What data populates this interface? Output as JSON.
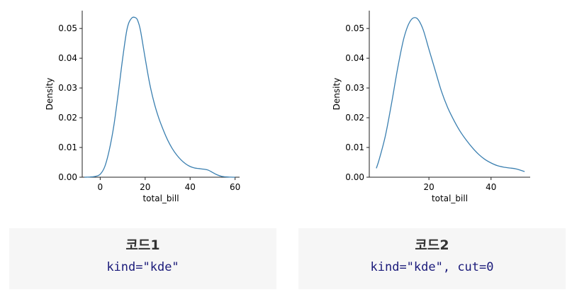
{
  "chart_data": [
    {
      "type": "line",
      "xlabel": "total_bill",
      "ylabel": "Density",
      "xlim": [
        -8,
        62
      ],
      "ylim": [
        0,
        0.056
      ],
      "xticks": [
        0,
        20,
        40,
        60
      ],
      "yticks": [
        0.0,
        0.01,
        0.02,
        0.03,
        0.04,
        0.05
      ],
      "xtick_labels": [
        "0",
        "20",
        "40",
        "60"
      ],
      "ytick_labels": [
        "0.00",
        "0.01",
        "0.02",
        "0.03",
        "0.04",
        "0.05"
      ],
      "color": "#3a7fb0",
      "series": [
        {
          "x": [
            -7,
            -4,
            -2,
            0,
            2,
            4,
            6,
            8,
            10,
            12,
            14,
            16,
            17,
            18,
            20,
            22,
            24,
            26,
            28,
            30,
            32,
            34,
            36,
            38,
            40,
            42,
            44,
            46,
            48,
            50,
            52,
            54,
            56,
            58,
            60
          ],
          "y": [
            0.0,
            0.0001,
            0.0003,
            0.001,
            0.0035,
            0.009,
            0.017,
            0.028,
            0.04,
            0.05,
            0.0535,
            0.0535,
            0.052,
            0.049,
            0.04,
            0.0315,
            0.025,
            0.02,
            0.016,
            0.0125,
            0.0097,
            0.0075,
            0.0058,
            0.0045,
            0.0036,
            0.0031,
            0.0029,
            0.0027,
            0.0024,
            0.0016,
            0.0008,
            0.0003,
            0.0001,
            3e-05,
            0.0
          ]
        }
      ]
    },
    {
      "type": "line",
      "xlabel": "total_bill",
      "ylabel": "Density",
      "xlim": [
        0.8,
        52.6
      ],
      "ylim": [
        0,
        0.056
      ],
      "xticks": [
        20,
        40
      ],
      "yticks": [
        0.0,
        0.01,
        0.02,
        0.03,
        0.04,
        0.05
      ],
      "xtick_labels": [
        "20",
        "40"
      ],
      "ytick_labels": [
        "0.00",
        "0.01",
        "0.02",
        "0.03",
        "0.04",
        "0.05"
      ],
      "color": "#3a7fb0",
      "series": [
        {
          "x": [
            3.07,
            4,
            6,
            8,
            10,
            12,
            14,
            16,
            18,
            20,
            22,
            24,
            26,
            28,
            30,
            32,
            34,
            36,
            38,
            40,
            42,
            44,
            46,
            48,
            50.81
          ],
          "y": [
            0.003,
            0.006,
            0.014,
            0.025,
            0.037,
            0.047,
            0.0525,
            0.0535,
            0.05,
            0.043,
            0.036,
            0.029,
            0.0235,
            0.0192,
            0.0155,
            0.0125,
            0.0099,
            0.0077,
            0.006,
            0.0048,
            0.0039,
            0.0034,
            0.0031,
            0.0028,
            0.0019
          ]
        }
      ]
    }
  ],
  "captions": [
    {
      "title": "코드1",
      "code": "kind=\"kde\""
    },
    {
      "title": "코드2",
      "code": "kind=\"kde\", cut=0"
    }
  ]
}
